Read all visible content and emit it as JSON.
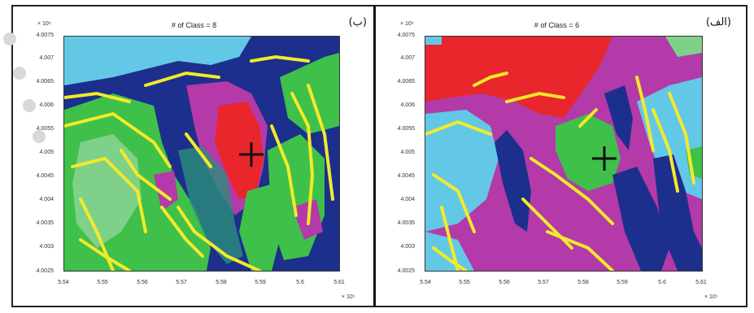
{
  "left_panel": {
    "title": "# of Class = 8",
    "label": "(ب)",
    "y_exponent": "× 10⁶",
    "x_exponent": "× 10⁵",
    "y_ticks": [
      "4.0075",
      "4.007",
      "4.0065",
      "4.006",
      "4.0055",
      "4.005",
      "4.0045",
      "4.004",
      "4.0035",
      "4.003",
      "4.0025"
    ],
    "x_ticks": [
      "5.54",
      "5.55",
      "5.56",
      "5.57",
      "5.58",
      "5.59",
      "5.6",
      "5.61"
    ]
  },
  "right_panel": {
    "title": "# of Class = 6",
    "label": "(الف)",
    "y_exponent": "× 10⁶",
    "x_exponent": "× 10⁵",
    "y_ticks": [
      "4.0075",
      "4.007",
      "4.0065",
      "4.006",
      "4.0055",
      "4.005",
      "4.0045",
      "4.004",
      "4.0035",
      "4.003",
      "4.0025"
    ],
    "x_ticks": [
      "5.54",
      "5.55",
      "5.56",
      "5.57",
      "5.58",
      "5.59",
      "5.6",
      "5.61"
    ]
  },
  "colors": {
    "navy": "#1c2f8c",
    "sky": "#63c8e6",
    "green": "#3fc04a",
    "light_green": "#7fd18a",
    "magenta": "#b33aa8",
    "red": "#e8262b",
    "teal": "#2b8f7b",
    "yellow": "#f2ea2a",
    "marker": "#111111"
  }
}
